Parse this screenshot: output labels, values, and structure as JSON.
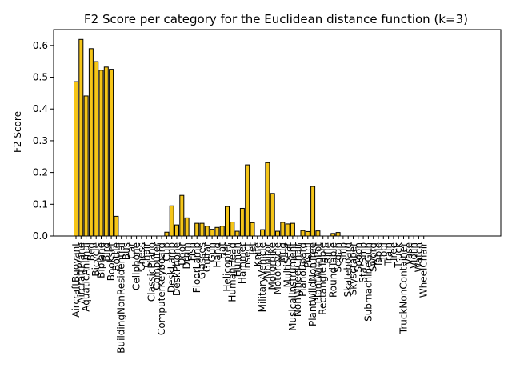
{
  "chart_data": {
    "type": "bar",
    "title": "F2 Score per category for the Euclidean distance function (k=3)",
    "xlabel": "",
    "ylabel": "F2 Score",
    "ylim": [
      0,
      0.65
    ],
    "yticks": [
      0.0,
      0.1,
      0.2,
      0.3,
      0.4,
      0.5,
      0.6
    ],
    "ytick_labels": [
      "0.0",
      "0.1",
      "0.2",
      "0.3",
      "0.4",
      "0.5",
      "0.6"
    ],
    "grid": false,
    "bar_color": "#f5c518",
    "edge_color": "#000000",
    "categories": [
      "AircraftBuoyant",
      "AircraftPlane",
      "AquaticAnimal",
      "Bed",
      "Bicycle",
      "Biplane",
      "Bird",
      "Bookset",
      "Bottle",
      "BuildingNonResidential",
      "Bus",
      "Car",
      "Cellphone",
      "Chess",
      "Chair",
      "ClassicPiano",
      "Computer",
      "ComputerKeyboard",
      "Cup",
      "DeskLamp",
      "DeskPhone",
      "Door",
      "Drum",
      "Fish",
      "FloorLamp",
      "Glasses",
      "Guitar",
      "Gun",
      "Hand",
      "Hat",
      "Helicopter",
      "HumanHead",
      "Human",
      "Hammer",
      "Insect",
      "Jet",
      "Knife",
      "MilitaryVehicle",
      "Monitor",
      "Motorbike",
      "Motorcycle",
      "Mug",
      "MultiSeat",
      "MusicalInstrument",
      "NonWheelChair",
      "PianoBoard",
      "Pistol",
      "PlantWildNonTree",
      "PlantWithPot",
      "RectangleTable",
      "Rifle",
      "RoundTable",
      "Sedan",
      "Ship",
      "Skateboard",
      "Skyscraper",
      "Spoon",
      "StarShip",
      "SubmachineGun",
      "Sword",
      "Table",
      "Tool",
      "Train",
      "Tree",
      "Truck",
      "TruckNonContainer",
      "Vase",
      "Violin",
      "Watch",
      "WheelChair"
    ],
    "values": [
      0.486,
      0.619,
      0.441,
      0.59,
      0.549,
      0.522,
      0.532,
      0.525,
      0.062,
      0,
      0,
      0,
      0,
      0,
      0,
      0,
      0,
      0,
      0.012,
      0.095,
      0.035,
      0.128,
      0.057,
      0,
      0.04,
      0.04,
      0.031,
      0.021,
      0.027,
      0.031,
      0.093,
      0.044,
      0.015,
      0.087,
      0.224,
      0.042,
      0,
      0.02,
      0.231,
      0.134,
      0.015,
      0.043,
      0.038,
      0.04,
      0,
      0.017,
      0.014,
      0.156,
      0.016,
      0,
      0,
      0.008,
      0.011,
      0,
      0,
      0,
      0,
      0,
      0,
      0,
      0,
      0,
      0,
      0,
      0,
      0,
      0,
      0,
      0,
      0
    ],
    "displayed_tick_labels": [
      "AircraftBuoyant",
      "AircraftPlane",
      "AquaticAnimal",
      "Bed",
      "Bicycle",
      "Biplane",
      "Bird",
      "Bookset",
      "Bottle",
      "BuildingNonResidential",
      "Bus",
      "Car",
      "Cellphone",
      "Chess",
      "Chair",
      "ClassicPiano",
      "Computer",
      "ComputerKeyboard",
      "Cup",
      "DeskLamp",
      "DeskPhone",
      "Door",
      "Drum",
      "Fish",
      "FloorLamp",
      "Glasses",
      "Guitar",
      "Gun",
      "Hand",
      "Hat",
      "Helicopter",
      "HumanHead",
      "Human",
      "Hammer",
      "Insect",
      "Jet",
      "Knife",
      "MilitaryVehicle",
      "Monitor",
      "Motorbike",
      "Motorcycle",
      "Mug",
      "MultiSeat",
      "MusicalInstrument",
      "NonWheelChair",
      "PianoBoard",
      "Pistol",
      "PlantWildNonTree",
      "PlantWithPot",
      "RectangleTable",
      "Rifle",
      "RoundTable",
      "Sedan",
      "Ship",
      "Skateboard",
      "Skyscraper",
      "Spoon",
      "StarShip",
      "SubmachineGun",
      "Sword",
      "Table",
      "Tool",
      "Train",
      "Tree",
      "Truck",
      "TruckNonContainer",
      "Vase",
      "Violin",
      "Watch",
      "WheelChair"
    ]
  }
}
